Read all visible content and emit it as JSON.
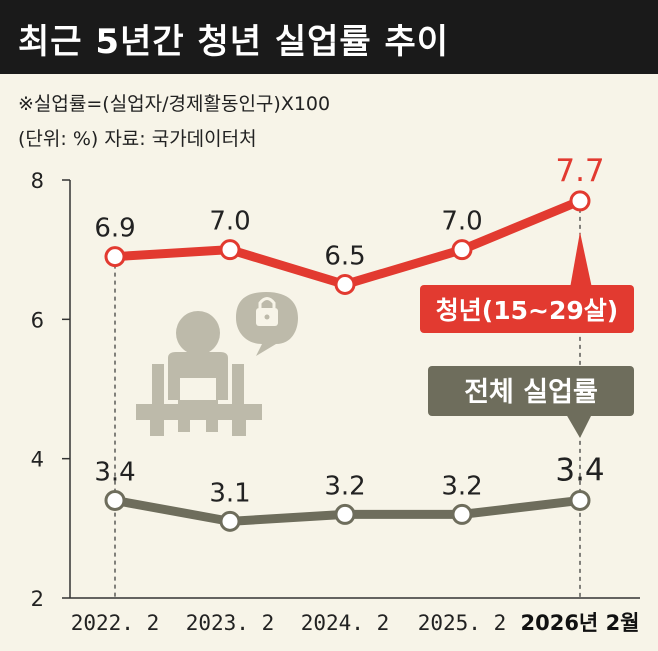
{
  "title": "최근 5년간 청년 실업률 추이",
  "notes": {
    "formula": "※실업률=(실업자/경제활동인구)X100",
    "unit_source": "(단위: %) 자료: 국가데이터처"
  },
  "colors": {
    "youth": "#e23a30",
    "total": "#6e6d5c",
    "background": "#f7f4e8",
    "title_bar": "#1a1a1a"
  },
  "chart_data": {
    "type": "line",
    "title": "최근 5년간 청년 실업률 추이",
    "categories": [
      "2022. 2",
      "2023. 2",
      "2024. 2",
      "2025. 2",
      "2026년 2월"
    ],
    "y_ticks": [
      "2",
      "4",
      "6",
      "8"
    ],
    "ylim": [
      2,
      8
    ],
    "grid": false,
    "series": [
      {
        "name": "청년(15~29살)",
        "values": [
          6.9,
          7.0,
          6.5,
          7.0,
          7.7
        ],
        "labels": [
          "6.9",
          "7.0",
          "6.5",
          "7.0",
          "7.7"
        ]
      },
      {
        "name": "전체 실업률",
        "values": [
          3.4,
          3.1,
          3.2,
          3.2,
          3.4
        ],
        "labels": [
          "3.4",
          "3.1",
          "3.2",
          "3.2",
          "3.4"
        ]
      }
    ]
  },
  "icons": [
    "person-sitting-icon",
    "speech-bubble-lock-icon"
  ]
}
